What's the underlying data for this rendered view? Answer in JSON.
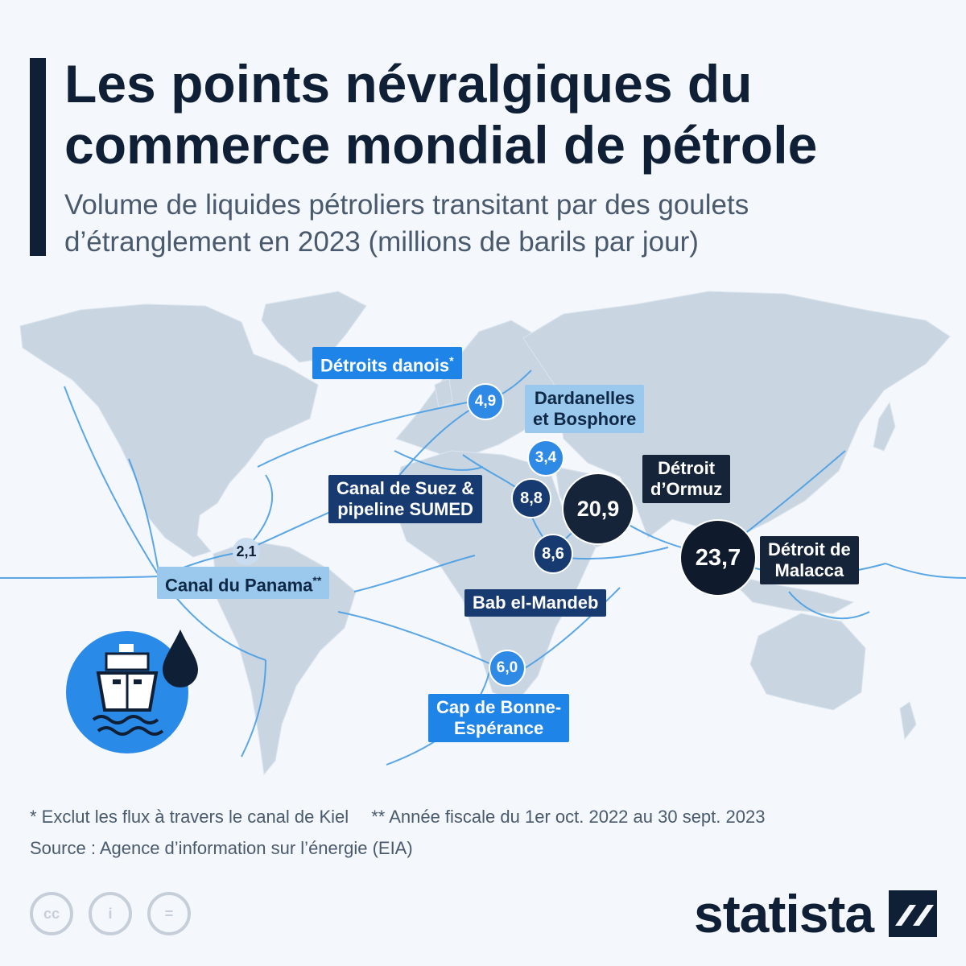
{
  "header": {
    "title_line1": "Les points névralgiques du",
    "title_line2": "commerce mondial de pétrole",
    "subtitle_line1": "Volume de liquides pétroliers transitant par des goulets",
    "subtitle_line2": "d’étranglement en 2023 (millions de barils par jour)"
  },
  "chokepoints": [
    {
      "id": "danish",
      "label": "Détroits danois",
      "suffix": "*",
      "value": "4,9"
    },
    {
      "id": "bosphorus",
      "label_line1": "Dardanelles",
      "label_line2": "et Bosphore",
      "value": "3,4"
    },
    {
      "id": "suez",
      "label_line1": "Canal de Suez &",
      "label_line2": "pipeline SUMED",
      "value": "8,8"
    },
    {
      "id": "hormuz",
      "label_line1": "Détroit",
      "label_line2": "d’Ormuz",
      "value": "20,9"
    },
    {
      "id": "malacca",
      "label_line1": "Détroit de",
      "label_line2": "Malacca",
      "value": "23,7"
    },
    {
      "id": "bab",
      "label": "Bab el-Mandeb",
      "value": "8,6"
    },
    {
      "id": "panama",
      "label": "Canal du Panama",
      "suffix": "**",
      "value": "2,1"
    },
    {
      "id": "cape",
      "label_line1": "Cap de Bonne-",
      "label_line2": "Espérance",
      "value": "6,0"
    }
  ],
  "footnotes": {
    "note1": "* Exclut les flux à travers le canal de Kiel",
    "note2": "** Année fiscale du 1er oct. 2022 au 30 sept. 2023",
    "source": "Source : Agence d’information sur l’énergie (EIA)"
  },
  "license_icons": {
    "cc": "cc",
    "by": "i",
    "nd": "="
  },
  "brand": "statista",
  "colors": {
    "dark": "#0f1f36",
    "navy": "#173a70",
    "blue": "#1f84e8",
    "light_blue": "#9bc9ee",
    "land": "#c9d6e2",
    "route": "#4a9ee4"
  }
}
